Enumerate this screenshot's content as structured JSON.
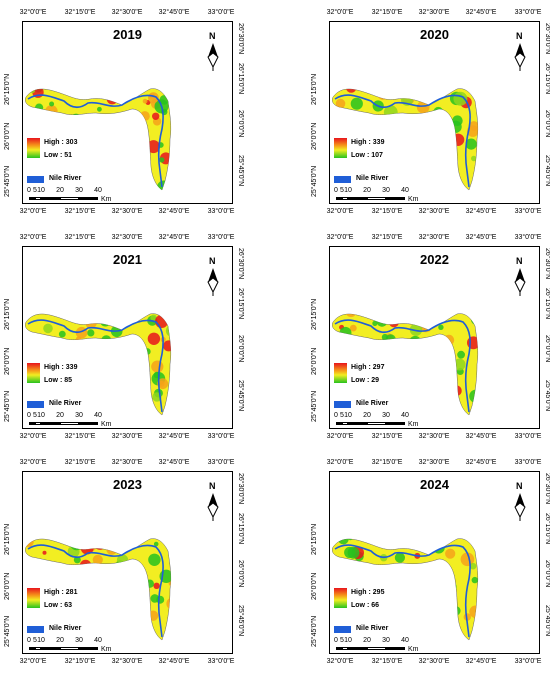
{
  "legend": {
    "high_prefix": "High : ",
    "low_prefix": "Low : ",
    "river_label": "Nile River"
  },
  "scale": {
    "labels": [
      "0",
      "5",
      "10",
      "20",
      "30",
      "40"
    ],
    "unit": "Km"
  },
  "north_letter": "N",
  "ticks": {
    "top": [
      "32°0'0\"E",
      "32°15'0\"E",
      "32°30'0\"E",
      "32°45'0\"E",
      "33°0'0\"E"
    ],
    "bottom": [
      "32°0'0\"E",
      "32°15'0\"E",
      "32°30'0\"E",
      "32°45'0\"E",
      "33°0'0\"E"
    ],
    "left": [
      "26°15'0\"N",
      "26°0'0\"N",
      "25°45'0\"N"
    ],
    "right": [
      "26°30'0\"N",
      "26°15'0\"N",
      "26°0'0\"N",
      "25°45'0\"N"
    ]
  },
  "colors": {
    "high": "#e8141c",
    "mid": "#f2ee22",
    "low": "#27c21f",
    "river": "#1f5ed7"
  },
  "maps": [
    {
      "year": "2019",
      "high": "303",
      "low": "51"
    },
    {
      "year": "2020",
      "high": "339",
      "low": "107"
    },
    {
      "year": "2021",
      "high": "339",
      "low": "85"
    },
    {
      "year": "2022",
      "high": "297",
      "low": "29"
    },
    {
      "year": "2023",
      "high": "281",
      "low": "63"
    },
    {
      "year": "2024",
      "high": "295",
      "low": "66"
    }
  ]
}
